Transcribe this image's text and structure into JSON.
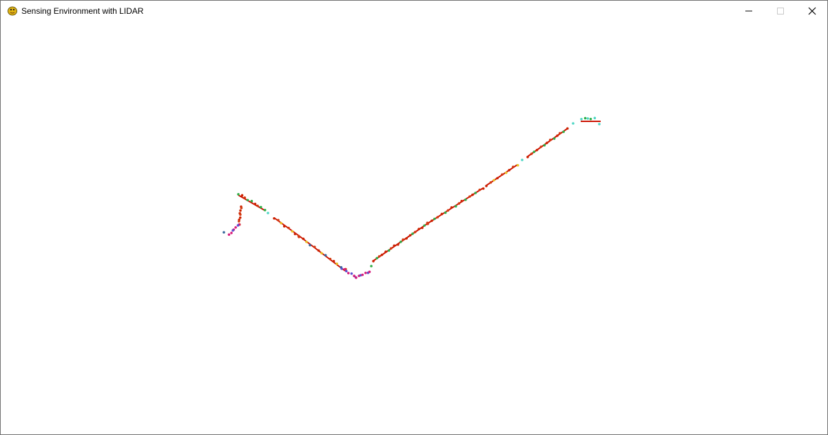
{
  "window": {
    "title": "Sensing Environment with LIDAR",
    "app_icon": "pygame-snake-icon",
    "controls": {
      "minimize_icon": "minimize-icon",
      "maximize_icon": "maximize-icon",
      "close_icon": "close-icon"
    }
  },
  "colors": {
    "wall_line": "#cc1100",
    "point_palette": [
      "#cc2200",
      "#d43a10",
      "#2fae45",
      "#4dd6c4",
      "#d81a7a",
      "#5a4fd0",
      "#e8c020",
      "#336699"
    ]
  }
}
